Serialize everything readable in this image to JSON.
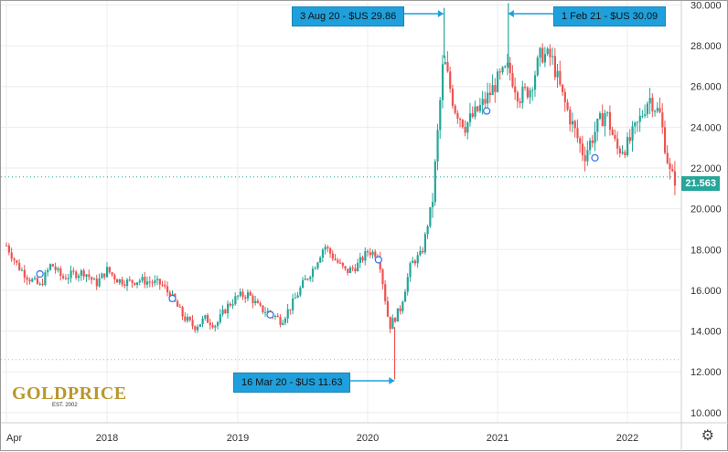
{
  "colors": {
    "up": "#26a69a",
    "down": "#ef5350",
    "callout_bg": "#1fa0dc",
    "price_tag": "#26a69a",
    "logo_gold": "#b8972d"
  },
  "callouts": {
    "aug20": "3 Aug 20 - $US 29.86",
    "feb21": "1 Feb 21 - $US 30.09",
    "mar20": "16 Mar 20 - $US 11.63"
  },
  "price_tag": "21.563",
  "logo": {
    "text": "GOLDPRICE",
    "subtext": "EST. 2002"
  },
  "settings_icon": "gear-icon",
  "chart_data": {
    "type": "candlestick",
    "title": "",
    "xlabel": "",
    "ylabel": "",
    "x_ticks": [
      "Apr",
      "2018",
      "2019",
      "2020",
      "2021",
      "2022"
    ],
    "y_ticks": [
      "10.000",
      "12.000",
      "14.000",
      "16.000",
      "18.000",
      "20.000",
      "22.000",
      "24.000",
      "26.000",
      "28.000",
      "30.000"
    ],
    "ylim": [
      9.5,
      30.2
    ],
    "current_price": 21.563,
    "grid": true,
    "annotations": [
      {
        "label": "3 Aug 20 - $US 29.86",
        "date": "2020-08-03",
        "value": 29.86
      },
      {
        "label": "1 Feb 21 - $US 30.09",
        "date": "2021-02-01",
        "value": 30.09
      },
      {
        "label": "16 Mar 20 - $US 11.63",
        "date": "2020-03-16",
        "value": 11.63
      }
    ],
    "series": [
      {
        "dates": [
          "2017-04",
          "2017-05",
          "2017-06",
          "2017-07",
          "2017-08",
          "2017-09",
          "2017-10",
          "2017-11",
          "2017-12",
          "2018-01",
          "2018-02",
          "2018-03",
          "2018-04",
          "2018-05",
          "2018-06",
          "2018-07",
          "2018-08",
          "2018-09",
          "2018-10",
          "2018-11",
          "2018-12",
          "2019-01",
          "2019-02",
          "2019-03",
          "2019-04",
          "2019-05",
          "2019-06",
          "2019-07",
          "2019-08",
          "2019-09",
          "2019-10",
          "2019-11",
          "2019-12",
          "2020-01",
          "2020-02",
          "2020-03",
          "2020-04",
          "2020-05",
          "2020-06",
          "2020-07",
          "2020-08",
          "2020-09",
          "2020-10",
          "2020-11",
          "2020-12",
          "2021-01",
          "2021-02",
          "2021-03",
          "2021-04",
          "2021-05",
          "2021-06",
          "2021-07",
          "2021-08",
          "2021-09",
          "2021-10",
          "2021-11",
          "2021-12",
          "2022-01",
          "2022-02",
          "2022-03",
          "2022-04",
          "2022-05"
        ],
        "values": [
          18.2,
          17.2,
          16.6,
          16.2,
          17.3,
          16.6,
          16.8,
          16.9,
          16.3,
          17.0,
          16.5,
          16.4,
          16.5,
          16.4,
          16.3,
          15.6,
          14.7,
          14.2,
          14.6,
          14.3,
          15.2,
          15.7,
          15.8,
          15.1,
          14.9,
          14.5,
          15.3,
          16.3,
          17.1,
          18.2,
          17.5,
          16.9,
          17.2,
          17.9,
          17.8,
          14.2,
          15.1,
          17.3,
          17.8,
          20.5,
          27.4,
          25.0,
          24.1,
          24.7,
          25.4,
          26.3,
          26.9,
          25.5,
          25.9,
          27.6,
          27.4,
          25.5,
          24.0,
          22.6,
          23.8,
          24.8,
          22.9,
          23.1,
          24.2,
          25.5,
          24.6,
          21.5
        ]
      }
    ]
  }
}
